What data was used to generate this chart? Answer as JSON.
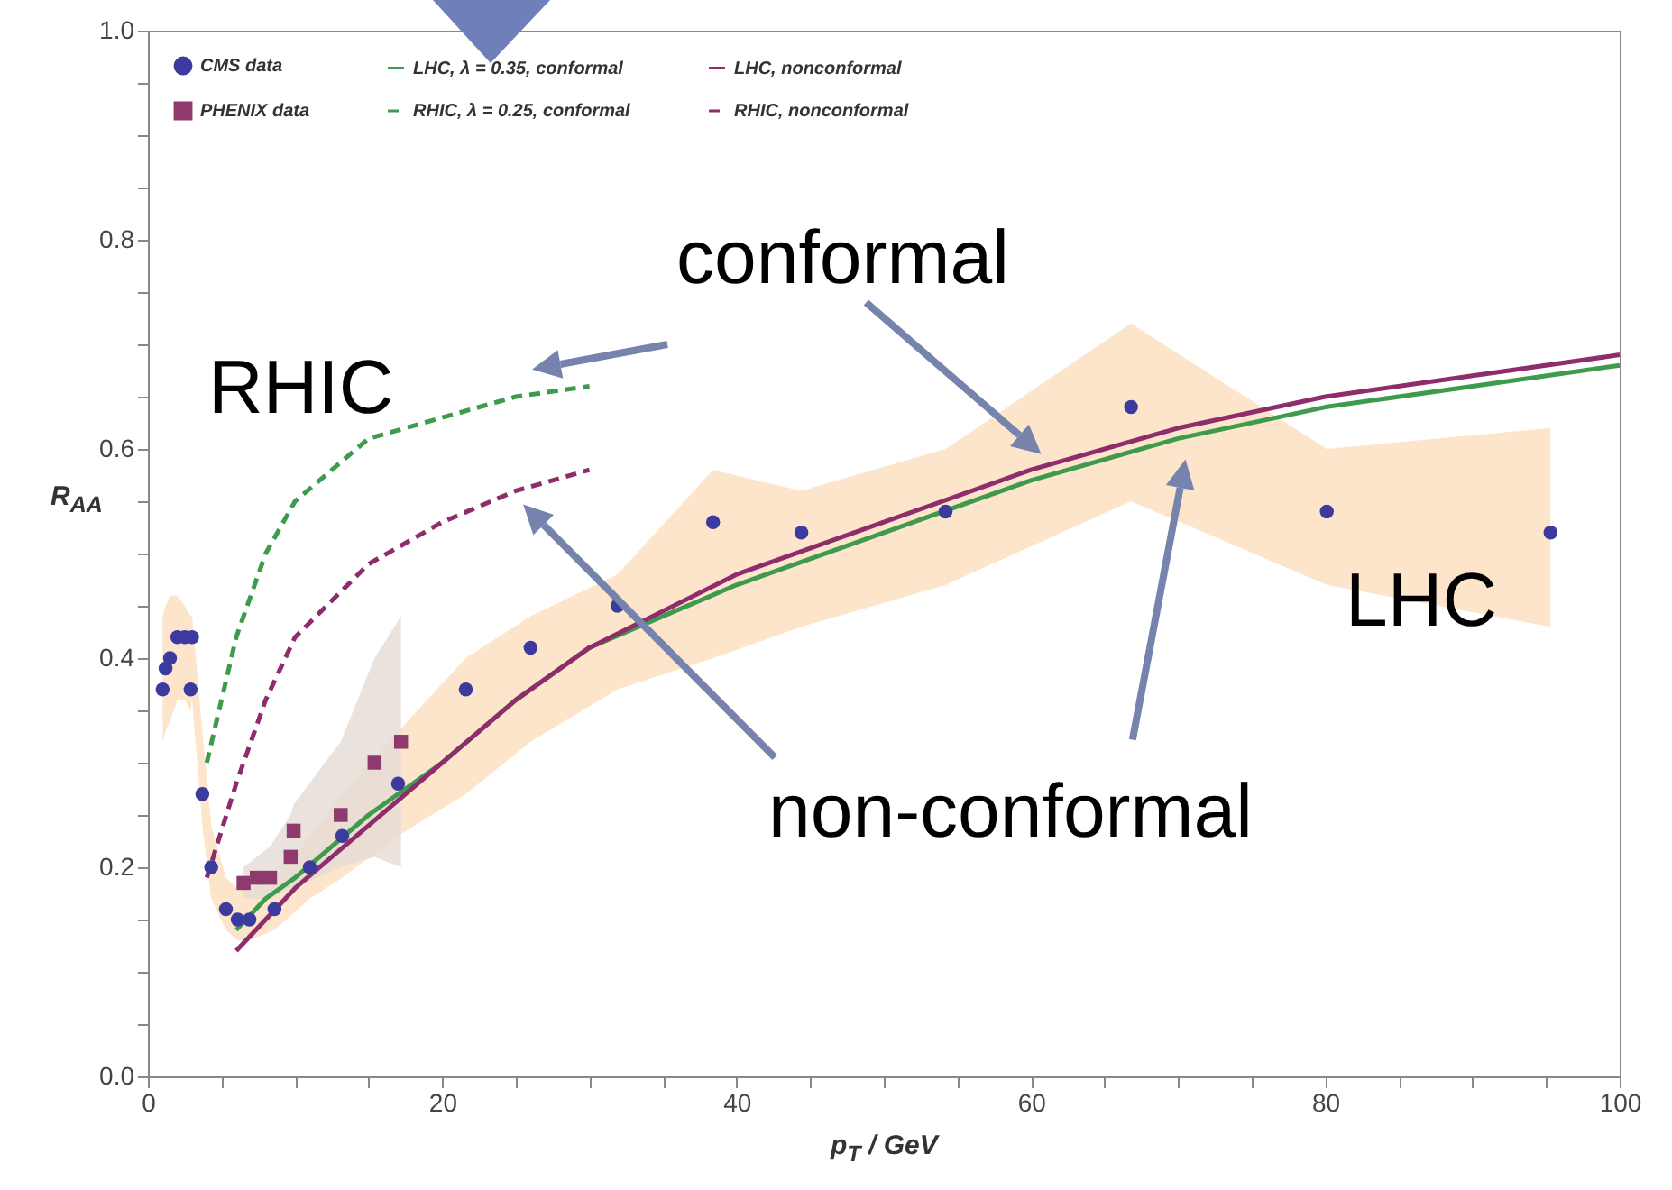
{
  "chart_data": {
    "type": "scatter",
    "xlabel": "p$_{T}$ / GeV",
    "ylabel": "R$_{AA}$",
    "xlim": [
      0,
      100
    ],
    "ylim": [
      0,
      1
    ],
    "xticks": [
      0,
      {
        "value": 5,
        "label": null
      },
      20,
      {
        "value": 10,
        "label": null
      },
      {
        "value": 15,
        "label": null
      },
      {
        "value": 25,
        "label": null
      },
      40,
      {
        "value": 30,
        "label": null
      },
      {
        "value": 35,
        "label": null
      },
      {
        "value": 45,
        "label": null
      },
      60,
      {
        "value": 50,
        "label": null
      },
      {
        "value": 55,
        "label": null
      },
      {
        "value": 65,
        "label": null
      },
      80,
      {
        "value": 70,
        "label": null
      },
      {
        "value": 75,
        "label": null
      },
      {
        "value": 85,
        "label": null
      },
      100,
      {
        "value": 90,
        "label": null
      },
      {
        "value": 95,
        "label": null
      }
    ],
    "yticks": [
      {
        "value": 0,
        "label": "0.0"
      },
      {
        "value": 0.05,
        "label": null
      },
      {
        "value": 0.1,
        "label": null
      },
      {
        "value": 0.15,
        "label": null
      },
      {
        "value": 0.2,
        "label": "0.2"
      },
      {
        "value": 0.25,
        "label": null
      },
      {
        "value": 0.3,
        "label": null
      },
      {
        "value": 0.35,
        "label": null
      },
      {
        "value": 0.4,
        "label": "0.4"
      },
      {
        "value": 0.45,
        "label": null
      },
      {
        "value": 0.5,
        "label": null
      },
      {
        "value": 0.55,
        "label": null
      },
      {
        "value": 0.6,
        "label": "0.6"
      },
      {
        "value": 0.65,
        "label": null
      },
      {
        "value": 0.7,
        "label": null
      },
      {
        "value": 0.75,
        "label": null
      },
      {
        "value": 0.8,
        "label": "0.8"
      },
      {
        "value": 0.85,
        "label": null
      },
      {
        "value": 0.9,
        "label": null
      },
      {
        "value": 0.95,
        "label": null
      },
      {
        "value": 1,
        "label": "1.0"
      }
    ],
    "grid": false,
    "legend": "top left",
    "series": [
      {
        "name": "CMS data",
        "marker": "circle",
        "color": "#3b3b9f",
        "x": [
          1.0,
          1.2,
          1.5,
          2.0,
          2.5,
          2.9,
          3.0,
          3.7,
          4.3,
          5.3,
          6.1,
          6.9,
          8.6,
          11,
          13.2,
          17,
          21.6,
          26,
          31.9,
          38.4,
          44.4,
          54.2,
          66.8,
          80.1,
          95.3
        ],
        "values": [
          0.37,
          0.39,
          0.4,
          0.42,
          0.42,
          0.37,
          0.42,
          0.27,
          0.2,
          0.16,
          0.15,
          0.15,
          0.16,
          0.2,
          0.23,
          0.28,
          0.37,
          0.41,
          0.45,
          0.53,
          0.52,
          0.54,
          0.64,
          0.54,
          0.52
        ],
        "lower": [
          0.32,
          0.33,
          0.34,
          0.36,
          0.36,
          0.35,
          0.36,
          0.24,
          0.17,
          0.14,
          0.13,
          0.13,
          0.14,
          0.17,
          0.19,
          0.23,
          0.27,
          0.32,
          0.37,
          0.4,
          0.43,
          0.47,
          0.55,
          0.47,
          0.43
        ],
        "upper": [
          0.44,
          0.45,
          0.46,
          0.46,
          0.45,
          0.44,
          0.44,
          0.33,
          0.24,
          0.19,
          0.18,
          0.18,
          0.19,
          0.23,
          0.27,
          0.33,
          0.4,
          0.44,
          0.48,
          0.58,
          0.56,
          0.6,
          0.72,
          0.6,
          0.62
        ]
      },
      {
        "name": "LHC, λ = 0.35, conformal",
        "type": "line",
        "line_style": "solid",
        "color": "#3e9a4c",
        "x": [
          6,
          8,
          10,
          15,
          20,
          25,
          30,
          40,
          50,
          60,
          70,
          80,
          90,
          100
        ],
        "values": [
          0.14,
          0.17,
          0.19,
          0.25,
          0.3,
          0.36,
          0.41,
          0.47,
          0.52,
          0.57,
          0.61,
          0.64,
          0.66,
          0.68
        ]
      },
      {
        "name": "LHC, nonconformal",
        "type": "line",
        "line_style": "solid",
        "color": "#8e2c6c",
        "x": [
          6,
          8,
          10,
          15,
          20,
          25,
          30,
          40,
          50,
          60,
          70,
          80,
          90,
          100
        ],
        "values": [
          0.12,
          0.15,
          0.18,
          0.24,
          0.3,
          0.36,
          0.41,
          0.48,
          0.53,
          0.58,
          0.62,
          0.65,
          0.67,
          0.69
        ]
      },
      {
        "name": "PHENIX data",
        "marker": "square",
        "color": "#8e3a6e",
        "x": [
          6.5,
          7.4,
          8.3,
          9.7,
          9.9,
          13.1,
          15.4,
          17.2
        ],
        "values": [
          0.185,
          0.19,
          0.19,
          0.21,
          0.235,
          0.25,
          0.3,
          0.32
        ],
        "lower": [
          0.17,
          0.17,
          0.17,
          0.18,
          0.18,
          0.2,
          0.21,
          0.2
        ],
        "upper": [
          0.2,
          0.21,
          0.22,
          0.25,
          0.26,
          0.32,
          0.4,
          0.44
        ]
      },
      {
        "name": "RHIC, λ = 0.25, conformal",
        "type": "line",
        "line_style": "dashed",
        "color": "#3e9a4c",
        "x": [
          4,
          6,
          8,
          10,
          15,
          20,
          25,
          30
        ],
        "values": [
          0.3,
          0.42,
          0.5,
          0.55,
          0.61,
          0.63,
          0.65,
          0.66
        ]
      },
      {
        "name": "RHIC, nonconformal",
        "type": "line",
        "line_style": "dashed",
        "color": "#8e2c6c",
        "x": [
          4,
          6,
          8,
          10,
          15,
          20,
          25,
          30
        ],
        "values": [
          0.19,
          0.28,
          0.36,
          0.42,
          0.49,
          0.53,
          0.56,
          0.58
        ]
      }
    ],
    "annotations": [
      "conformal",
      "RHIC",
      "non-conformal",
      "LHC"
    ]
  }
}
